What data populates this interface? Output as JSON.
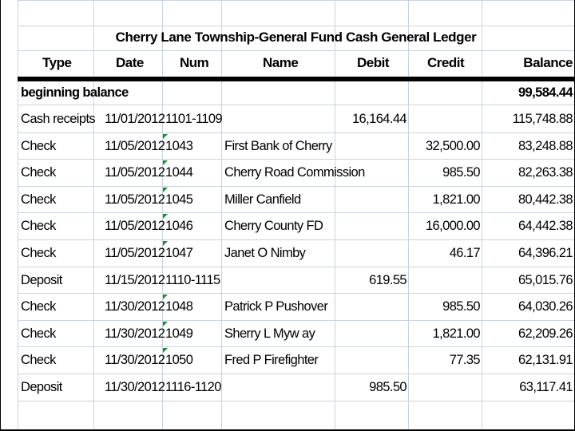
{
  "ledger": {
    "title": "Cherry Lane Township-General Fund Cash General Ledger",
    "headers": {
      "type": "Type",
      "date": "Date",
      "num": "Num",
      "name": "Name",
      "debit": "Debit",
      "credit": "Credit",
      "balance": "Balance"
    },
    "beginning": {
      "label": "beginning balance",
      "balance": "99,584.44"
    },
    "rows": [
      {
        "type": "Cash receipts",
        "date": "11/01/2012",
        "num": "1101-1109",
        "name": "",
        "debit": "16,164.44",
        "credit": "",
        "balance": "115,748.88"
      },
      {
        "type": "Check",
        "date": "11/05/2012",
        "num": "1043",
        "name": "First Bank of Cherry",
        "debit": "",
        "credit": "32,500.00",
        "balance": "83,248.88"
      },
      {
        "type": "Check",
        "date": "11/05/2012",
        "num": "1044",
        "name": "Cherry Road Commission",
        "debit": "",
        "credit": "985.50",
        "balance": "82,263.38"
      },
      {
        "type": "Check",
        "date": "11/05/2012",
        "num": "1045",
        "name": "Miller Canfield",
        "debit": "",
        "credit": "1,821.00",
        "balance": "80,442.38"
      },
      {
        "type": "Check",
        "date": "11/05/2012",
        "num": "1046",
        "name": "Cherry County FD",
        "debit": "",
        "credit": "16,000.00",
        "balance": "64,442.38"
      },
      {
        "type": "Check",
        "date": "11/05/2012",
        "num": "1047",
        "name": "Janet O Nimby",
        "debit": "",
        "credit": "46.17",
        "balance": "64,396.21"
      },
      {
        "type": "Deposit",
        "date": "11/15/2012",
        "num": "1110-1115",
        "name": "",
        "debit": "619.55",
        "credit": "",
        "balance": "65,015.76"
      },
      {
        "type": "Check",
        "date": "11/30/2012",
        "num": "1048",
        "name": "Patrick P Pushover",
        "debit": "",
        "credit": "985.50",
        "balance": "64,030.26"
      },
      {
        "type": "Check",
        "date": "11/30/2012",
        "num": "1049",
        "name": "Sherry L Myw ay",
        "debit": "",
        "credit": "1,821.00",
        "balance": "62,209.26"
      },
      {
        "type": "Check",
        "date": "11/30/2012",
        "num": "1050",
        "name": "Fred P Firefighter",
        "debit": "",
        "credit": "77.35",
        "balance": "62,131.91"
      },
      {
        "type": "Deposit",
        "date": "11/30/2012",
        "num": "1116-1120",
        "name": "",
        "debit": "985.50",
        "credit": "",
        "balance": "63,117.41"
      }
    ]
  },
  "colors": {
    "gridline": "#c9d3df",
    "flag": "#1e8c2e"
  }
}
